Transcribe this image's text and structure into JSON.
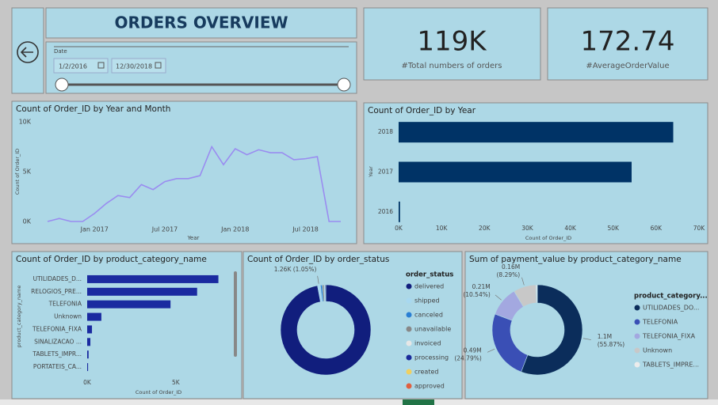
{
  "header": {
    "title": "ORDERS OVERVIEW"
  },
  "date_filter": {
    "label": "Date",
    "start": "1/2/2016",
    "end": "12/30/2018"
  },
  "kpis": [
    {
      "value": "119K",
      "label": "#Total numbers of orders"
    },
    {
      "value": "172.74",
      "label": "#AverageOrderValue"
    }
  ],
  "chart_data": [
    {
      "type": "line",
      "title": "Count of Order_ID by Year and Month",
      "x_label": "Year",
      "y_label": "Count of Order_ID",
      "categories": [
        null,
        null,
        null,
        null,
        "Jan 2017",
        null,
        null,
        null,
        null,
        null,
        "Jul 2017",
        null,
        null,
        null,
        null,
        null,
        "Jan 2018",
        null,
        null,
        null,
        null,
        null,
        "Jul 2018",
        null,
        null,
        null
      ],
      "values": [
        0,
        300,
        0,
        0,
        800,
        1800,
        2600,
        2400,
        3700,
        3200,
        4000,
        4300,
        4300,
        4600,
        7500,
        5700,
        7300,
        6700,
        7200,
        6900,
        6900,
        6200,
        6300,
        6500,
        0,
        0
      ],
      "color": "#9a8cf0",
      "ylim": [
        0,
        10000
      ],
      "yticks": [
        {
          "value": 0,
          "label": "0K"
        },
        {
          "value": 5000,
          "label": "5K"
        },
        {
          "value": 10000,
          "label": "10K"
        }
      ]
    },
    {
      "type": "bar",
      "orientation": "horizontal",
      "title": "Count of Order_ID by Year",
      "x_label": "Count of Order_ID",
      "y_label": "Year",
      "categories": [
        "2018",
        "2017",
        "2016"
      ],
      "values": [
        64000,
        54300,
        330
      ],
      "color": "#003366",
      "xlim": [
        0,
        70000
      ],
      "xticks": [
        {
          "value": 0,
          "label": "0K"
        },
        {
          "value": 10000,
          "label": "10K"
        },
        {
          "value": 20000,
          "label": "20K"
        },
        {
          "value": 30000,
          "label": "30K"
        },
        {
          "value": 40000,
          "label": "40K"
        },
        {
          "value": 50000,
          "label": "50K"
        },
        {
          "value": 60000,
          "label": "60K"
        },
        {
          "value": 70000,
          "label": "70K"
        }
      ]
    },
    {
      "type": "bar",
      "orientation": "horizontal",
      "title": "Count of Order_ID by product_category_name",
      "x_label": "Count of Order_ID",
      "y_label": "product_category_name",
      "categories": [
        "UTILIDADES_D...",
        "RELOGIOS_PRE...",
        "TELEFONIA",
        "Unknown",
        "TELEFONIA_FIXA",
        "SINALIZACAO ...",
        "TABLETS_IMPR...",
        "PORTATEIS_CA..."
      ],
      "values": [
        7400,
        6200,
        4700,
        800,
        270,
        180,
        80,
        50
      ],
      "color": "#1a2aa0",
      "xlim": [
        0,
        8000
      ],
      "xticks": [
        {
          "value": 0,
          "label": "0K"
        },
        {
          "value": 5000,
          "label": "5K"
        }
      ]
    },
    {
      "type": "donut",
      "title": "Count of Order_ID by order_status",
      "legend_title": "order_status",
      "categories": [
        "delivered",
        "shipped",
        "canceled",
        "unavailable",
        "invoiced",
        "processing",
        "created",
        "approved"
      ],
      "values": [
        115700,
        1260,
        750,
        730,
        380,
        360,
        5,
        2
      ],
      "value_labels": [
        null,
        "1.26K (1.05%)",
        null,
        null,
        null,
        null,
        null,
        null
      ],
      "colors": [
        "#111e7d",
        "#a8d8f0",
        "#2a7fd4",
        "#888888",
        "#e6e6e6",
        "#1a2a9a",
        "#f0d060",
        "#e06040"
      ]
    },
    {
      "type": "donut",
      "title": "Sum of payment_value by product_category_name",
      "legend_title": "product_category...",
      "categories": [
        "UTILIDADES_DO...",
        "TELEFONIA",
        "TELEFONIA_FIXA",
        "Unknown",
        "TABLETS_IMPRE..."
      ],
      "values": [
        1100000,
        490000,
        210000,
        160000,
        10000
      ],
      "value_labels": [
        "1.1M",
        "0.49M",
        "0.21M",
        "0.16M",
        null
      ],
      "percent_labels": [
        "(55.87%)",
        "(24.79%)",
        "(10.54%)",
        "(8.29%)",
        null
      ],
      "colors": [
        "#0b2d5b",
        "#3a4fb5",
        "#a3a8e0",
        "#c8c8c8",
        "#ececec"
      ]
    }
  ]
}
